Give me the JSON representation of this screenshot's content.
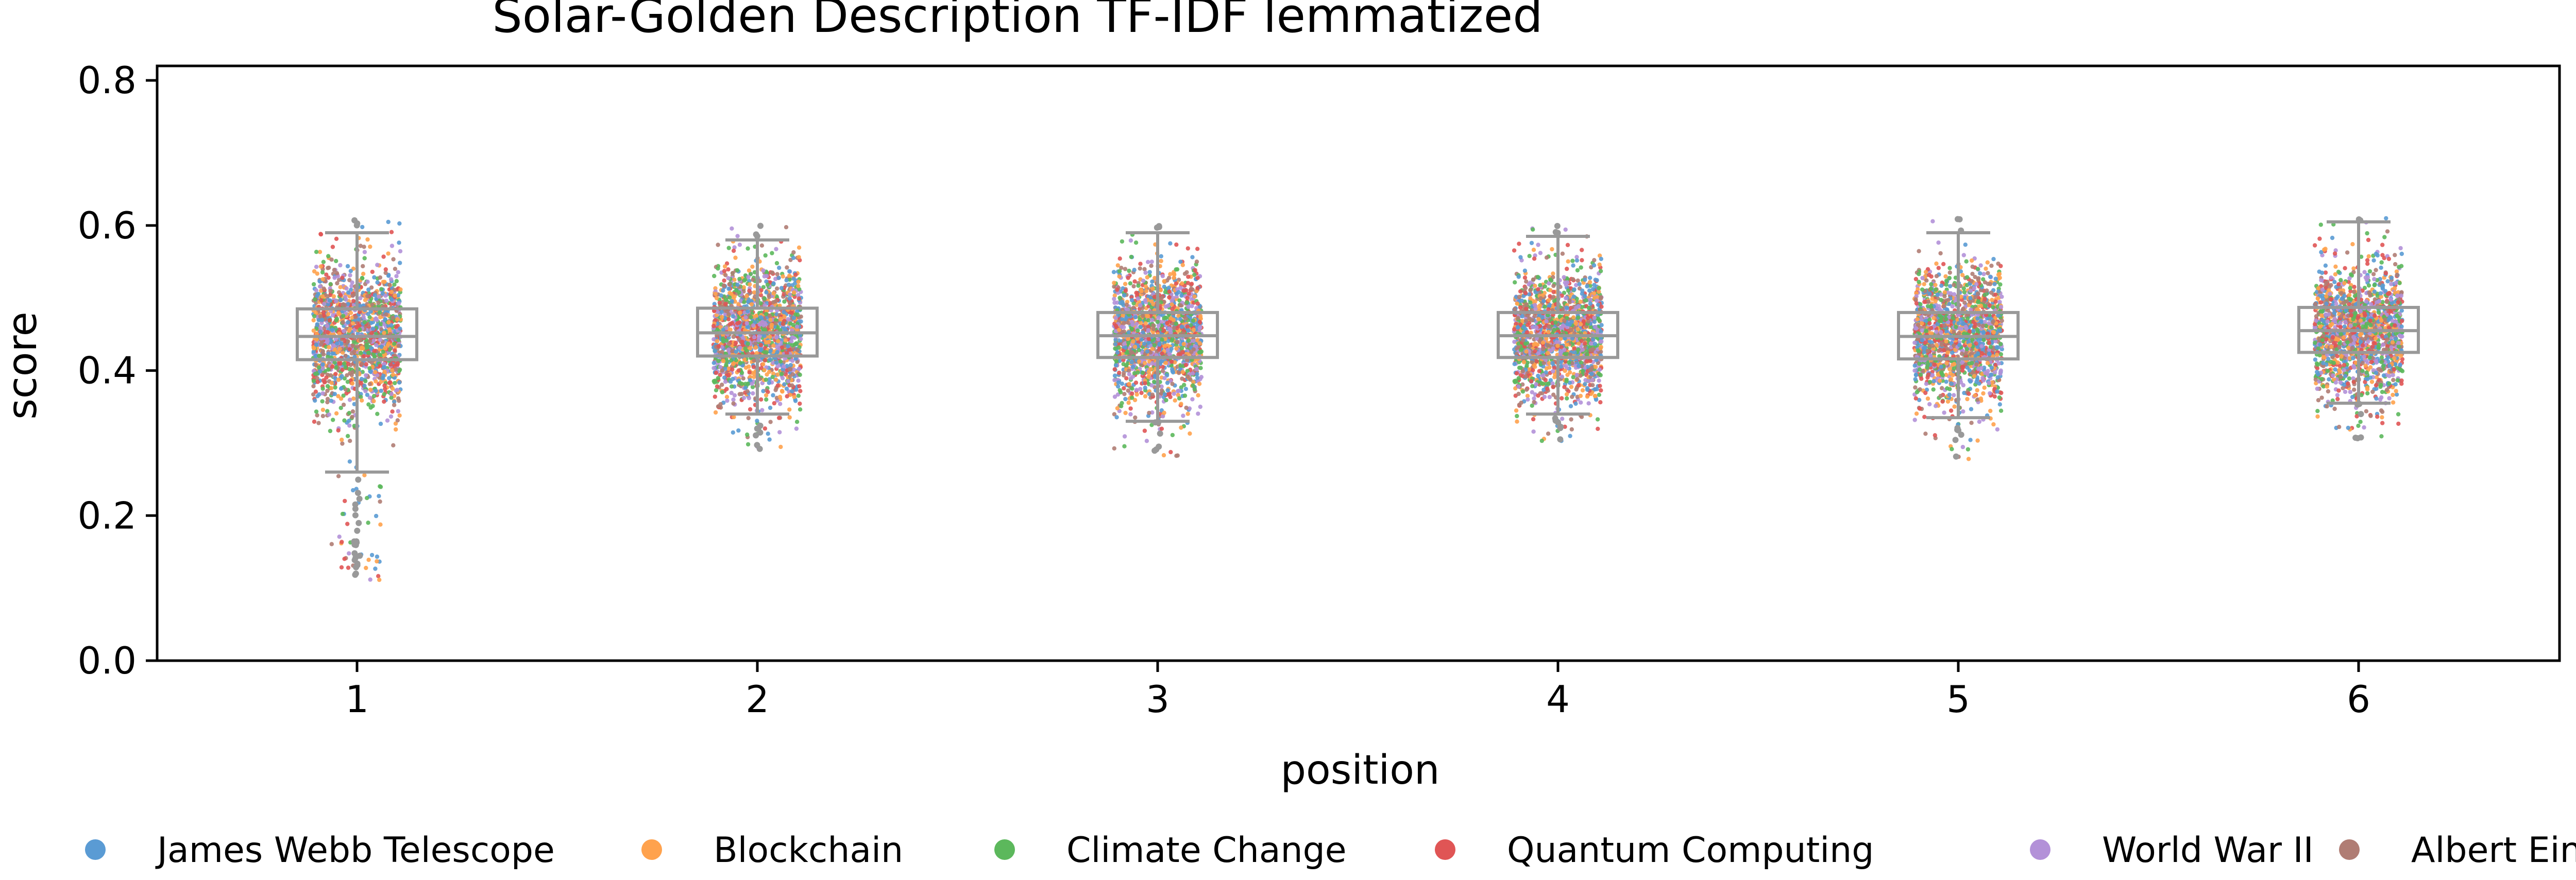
{
  "chart_data": {
    "type": "box",
    "title": "Solar-Golden Description TF-IDF lemmatized",
    "xlabel": "position",
    "ylabel": "score",
    "ylim": [
      0.0,
      0.82
    ],
    "yticks": [
      "0.0",
      "0.2",
      "0.4",
      "0.6",
      "0.8"
    ],
    "ytick_values": [
      0.0,
      0.2,
      0.4,
      0.6,
      0.8
    ],
    "categories": [
      "1",
      "2",
      "3",
      "4",
      "5",
      "6"
    ],
    "grid": false,
    "legend_position": "bottom",
    "box_color": "#999999",
    "boxes": [
      {
        "category": "1",
        "whisker_low": 0.26,
        "q1": 0.415,
        "median": 0.447,
        "q3": 0.485,
        "whisker_high": 0.59,
        "min": 0.11,
        "max": 0.61
      },
      {
        "category": "2",
        "whisker_low": 0.34,
        "q1": 0.42,
        "median": 0.452,
        "q3": 0.486,
        "whisker_high": 0.58,
        "min": 0.29,
        "max": 0.6
      },
      {
        "category": "3",
        "whisker_low": 0.33,
        "q1": 0.418,
        "median": 0.448,
        "q3": 0.48,
        "whisker_high": 0.59,
        "min": 0.28,
        "max": 0.6
      },
      {
        "category": "4",
        "whisker_low": 0.34,
        "q1": 0.418,
        "median": 0.448,
        "q3": 0.48,
        "whisker_high": 0.585,
        "min": 0.3,
        "max": 0.6
      },
      {
        "category": "5",
        "whisker_low": 0.335,
        "q1": 0.416,
        "median": 0.447,
        "q3": 0.48,
        "whisker_high": 0.59,
        "min": 0.27,
        "max": 0.61
      },
      {
        "category": "6",
        "whisker_low": 0.355,
        "q1": 0.425,
        "median": 0.455,
        "q3": 0.487,
        "whisker_high": 0.605,
        "min": 0.3,
        "max": 0.61
      }
    ],
    "series": [
      {
        "name": "James Webb Telescope",
        "color": "#5a9bd4"
      },
      {
        "name": "Blockchain",
        "color": "#ffa24d"
      },
      {
        "name": "Climate Change",
        "color": "#5cb85c"
      },
      {
        "name": "Quantum Computing",
        "color": "#e05555"
      },
      {
        "name": "World War II",
        "color": "#b391d8"
      },
      {
        "name": "Albert Einstein",
        "color": "#b07d74"
      }
    ]
  }
}
